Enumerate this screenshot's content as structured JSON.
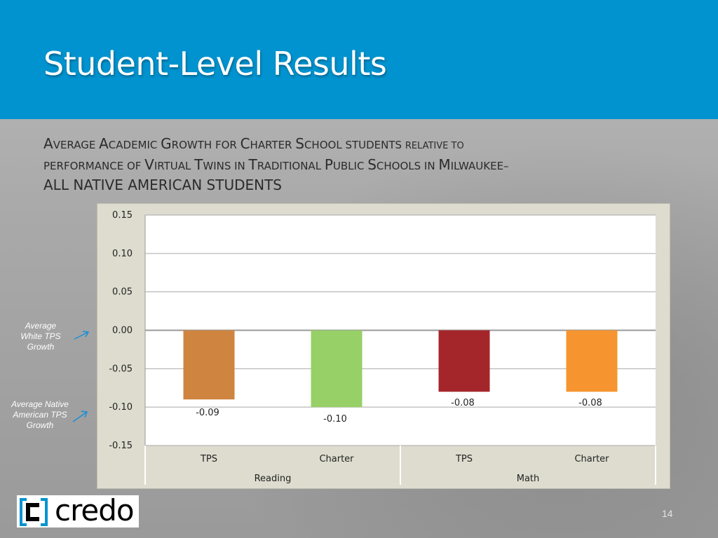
{
  "title": "Student-Level Results",
  "subtitle": {
    "line1_a": "A",
    "line1_b": "VERAGE ",
    "line1_c": "A",
    "line1_d": "CADEMIC ",
    "line1_e": "G",
    "line1_f": "ROWTH FOR ",
    "line1_g": "C",
    "line1_h": "HARTER ",
    "line1_i": "S",
    "line1_j": "CHOOL STUDENTS ",
    "line1_k": "RELATIVE TO",
    "line2_a": "PERFORMANCE OF ",
    "line2_b": "V",
    "line2_c": "IRTUAL ",
    "line2_d": "T",
    "line2_e": "WINS IN ",
    "line2_f": "T",
    "line2_g": "RADITIONAL ",
    "line2_h": "P",
    "line2_i": "UBLIC ",
    "line2_j": "S",
    "line2_k": "CHOOLS IN ",
    "line2_l": "M",
    "line2_m": "ILWAUKEE–",
    "line3": "ALL NATIVE AMERICAN STUDENTS"
  },
  "annotations": {
    "white": "Average White TPS Growth",
    "native": "Average Native American TPS Growth"
  },
  "logo": {
    "text": "credo"
  },
  "slide_number": "14",
  "colors": {
    "header": "#0093cf",
    "reading_tps": "#cf843f",
    "reading_charter": "#97d067",
    "math_tps": "#a4262b",
    "math_charter": "#f6952f",
    "arrow": "#1a8fd6"
  },
  "chart_data": {
    "type": "bar",
    "categories": [
      "TPS",
      "Charter",
      "TPS",
      "Charter"
    ],
    "groups": [
      {
        "name": "Reading",
        "categories": [
          "TPS",
          "Charter"
        ]
      },
      {
        "name": "Math",
        "categories": [
          "TPS",
          "Charter"
        ]
      }
    ],
    "values": [
      -0.09,
      -0.1,
      -0.08,
      -0.08
    ],
    "data_labels": [
      "-0.09",
      "-0.10",
      "-0.08",
      "-0.08"
    ],
    "bar_colors": [
      "#cf843f",
      "#97d067",
      "#a4262b",
      "#f6952f"
    ],
    "ylim": [
      -0.15,
      0.15
    ],
    "yticks": [
      0.15,
      0.1,
      0.05,
      0.0,
      -0.05,
      -0.1,
      -0.15
    ],
    "ytick_labels": [
      "0.15",
      "0.10",
      "0.05",
      "0.00",
      "-0.05",
      "-0.10",
      "-0.15"
    ],
    "grid": true,
    "legend": "none"
  }
}
